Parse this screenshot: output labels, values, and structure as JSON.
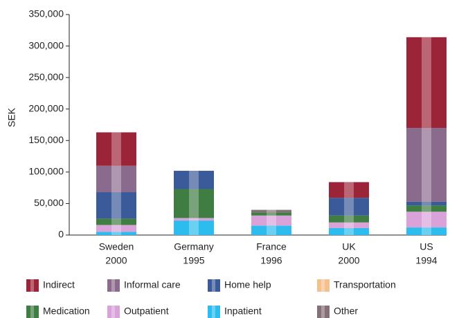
{
  "chart_data": {
    "type": "stacked_bar",
    "y_label": "SEK",
    "categories": [
      [
        "Sweden",
        "2000"
      ],
      [
        "Germany",
        "1995"
      ],
      [
        "France",
        "1996"
      ],
      [
        "UK",
        "2000"
      ],
      [
        "US",
        "1994"
      ]
    ],
    "series": [
      {
        "name": "Inpatient",
        "color": "#2cbdee",
        "values": [
          5000,
          23000,
          15000,
          11000,
          12000
        ]
      },
      {
        "name": "Outpatient",
        "color": "#d9a2d8",
        "values": [
          11000,
          4000,
          16000,
          9000,
          25000
        ]
      },
      {
        "name": "Medication",
        "color": "#3f7d42",
        "values": [
          10000,
          46000,
          5000,
          11000,
          10000
        ]
      },
      {
        "name": "Transportation",
        "color": "#f4c18e",
        "values": [
          0,
          0,
          0,
          0,
          0
        ]
      },
      {
        "name": "Home help",
        "color": "#3b5a9a",
        "values": [
          42000,
          29000,
          0,
          28000,
          6000
        ]
      },
      {
        "name": "Informal care",
        "color": "#8b6b8d",
        "values": [
          42000,
          0,
          0,
          0,
          117000
        ]
      },
      {
        "name": "Indirect",
        "color": "#9c2438",
        "values": [
          53000,
          0,
          0,
          25000,
          144000
        ]
      },
      {
        "name": "Other",
        "color": "#867078",
        "values": [
          0,
          0,
          4000,
          0,
          0
        ]
      }
    ],
    "legend_order": [
      "Indirect",
      "Informal care",
      "Home help",
      "Transportation",
      "Medication",
      "Outpatient",
      "Inpatient",
      "Other"
    ],
    "ylim": [
      0,
      350000
    ],
    "yticks": [
      0,
      {
        "value": 50000,
        "label": "50,000"
      },
      {
        "value": 100000,
        "label": "100,000"
      },
      {
        "value": 150000,
        "label": "150,000"
      },
      {
        "value": 200000,
        "label": "200,000"
      },
      {
        "value": 250000,
        "label": "250,000"
      },
      {
        "value": 300000,
        "label": "300,000"
      },
      {
        "value": 350000,
        "label": "350,000"
      }
    ]
  }
}
